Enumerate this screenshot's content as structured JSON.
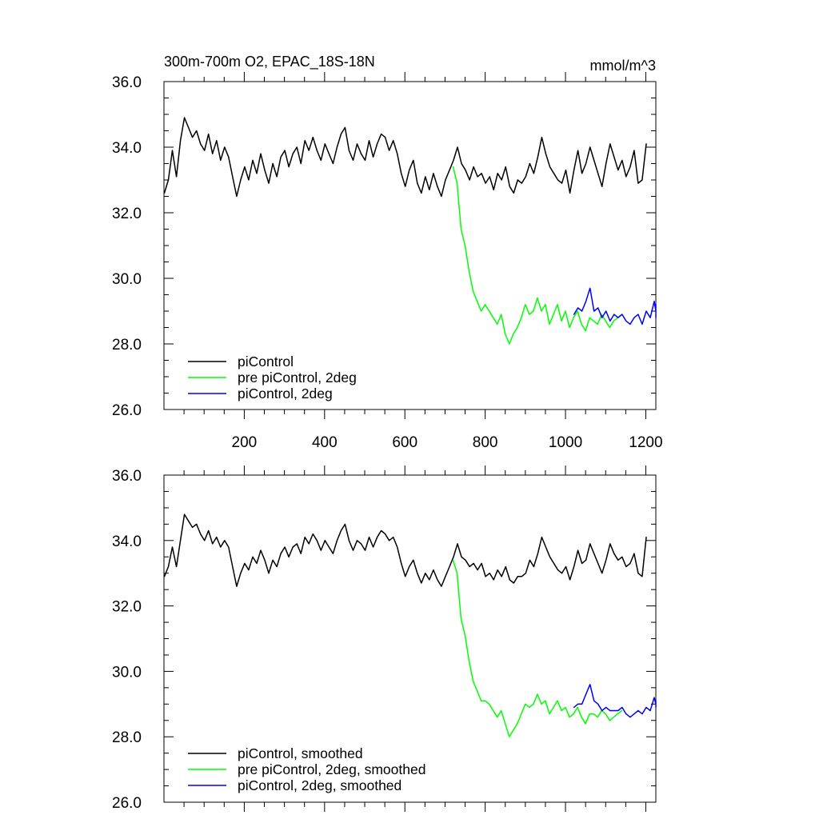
{
  "chart_data": [
    {
      "type": "line",
      "title": "300m-700m O2, EPAC_18S-18N",
      "units": "mmol/m^3",
      "xlim": [
        0,
        1225
      ],
      "ylim": [
        26,
        36
      ],
      "xticks": [
        200,
        400,
        600,
        800,
        1000,
        1200
      ],
      "xtick_labels": [
        "200",
        "400",
        "600",
        "800",
        "1000",
        "1200"
      ],
      "yticks": [
        26,
        28,
        30,
        32,
        34,
        36
      ],
      "ytick_labels": [
        "26.0",
        "28.0",
        "30.0",
        "32.0",
        "34.0",
        "36.0"
      ],
      "legend_position": "bottom-left",
      "series": [
        {
          "name": "piControl",
          "color": "#000000",
          "x_start": 1,
          "x_step": 10,
          "values": [
            32.6,
            33.0,
            33.9,
            33.1,
            34.2,
            34.9,
            34.6,
            34.3,
            34.5,
            34.1,
            33.9,
            34.4,
            33.8,
            34.2,
            33.6,
            34.0,
            33.7,
            33.1,
            32.5,
            33.0,
            33.4,
            33.0,
            33.6,
            33.2,
            33.8,
            33.3,
            32.9,
            33.5,
            33.1,
            33.7,
            33.9,
            33.4,
            33.8,
            34.0,
            33.5,
            34.2,
            33.9,
            34.3,
            33.9,
            33.6,
            34.1,
            33.8,
            33.5,
            34.0,
            34.4,
            34.6,
            33.9,
            33.6,
            34.1,
            33.8,
            33.6,
            34.2,
            33.7,
            34.1,
            34.4,
            34.3,
            33.9,
            34.2,
            33.8,
            33.2,
            32.8,
            33.3,
            33.6,
            32.9,
            32.6,
            33.1,
            32.7,
            33.2,
            32.8,
            32.5,
            33.0,
            33.3,
            33.6,
            34.0,
            33.5,
            33.3,
            33.0,
            33.4,
            33.1,
            33.2,
            32.9,
            33.1,
            32.7,
            33.2,
            33.0,
            33.4,
            32.8,
            32.6,
            33.0,
            32.9,
            33.1,
            33.5,
            33.2,
            33.7,
            34.3,
            33.8,
            33.4,
            33.2,
            33.0,
            32.9,
            33.3,
            32.6,
            33.3,
            33.9,
            33.2,
            33.5,
            34.0,
            33.6,
            33.2,
            32.8,
            33.5,
            34.1,
            33.7,
            33.3,
            33.6,
            33.1,
            33.4,
            33.9,
            32.9,
            33.0,
            34.1
          ]
        },
        {
          "name": "pre piControl, 2deg",
          "color": "#00ff00",
          "x_start": 720,
          "x_step": 10,
          "values": [
            33.4,
            32.9,
            31.5,
            31.0,
            30.2,
            29.6,
            29.3,
            29.0,
            29.2,
            29.0,
            28.8,
            28.6,
            28.9,
            28.3,
            28.0,
            28.3,
            28.5,
            28.8,
            29.2,
            28.9,
            29.0,
            29.4,
            29.0,
            29.2,
            28.6,
            28.9,
            29.2,
            28.7,
            29.0,
            28.5,
            28.8,
            29.0,
            28.6,
            28.4,
            28.8,
            28.7,
            28.6,
            28.9,
            28.7,
            28.5,
            28.7,
            28.8,
            28.9
          ]
        },
        {
          "name": "piControl, 2deg",
          "color": "#0000ff",
          "x_start": 1021,
          "x_step": 10,
          "values": [
            28.9,
            29.1,
            29.0,
            29.3,
            29.7,
            29.0,
            29.1,
            28.8,
            29.0,
            28.7,
            28.9,
            28.8,
            28.9,
            28.7,
            28.6,
            28.8,
            28.9,
            28.6,
            29.0,
            28.8,
            29.3,
            29.0,
            28.8,
            29.2
          ]
        }
      ]
    },
    {
      "type": "line",
      "xlim": [
        0,
        1225
      ],
      "ylim": [
        26,
        36
      ],
      "xticks": [
        200,
        400,
        600,
        800,
        1000,
        1200
      ],
      "yticks": [
        26,
        28,
        30,
        32,
        34,
        36
      ],
      "ytick_labels": [
        "26.0",
        "28.0",
        "30.0",
        "32.0",
        "34.0",
        "36.0"
      ],
      "legend_position": "bottom-left",
      "series": [
        {
          "name": "piControl, smoothed",
          "color": "#000000",
          "x_start": 1,
          "x_step": 10,
          "values": [
            32.9,
            33.2,
            33.8,
            33.2,
            34.0,
            34.8,
            34.6,
            34.4,
            34.5,
            34.2,
            34.0,
            34.3,
            33.9,
            34.1,
            33.8,
            34.0,
            33.8,
            33.2,
            32.6,
            33.0,
            33.3,
            33.1,
            33.5,
            33.3,
            33.7,
            33.4,
            33.0,
            33.4,
            33.2,
            33.6,
            33.8,
            33.5,
            33.8,
            33.9,
            33.6,
            34.1,
            33.9,
            34.2,
            34.0,
            33.7,
            34.0,
            33.8,
            33.6,
            34.0,
            34.3,
            34.5,
            34.0,
            33.7,
            34.0,
            33.9,
            33.7,
            34.1,
            33.8,
            34.1,
            34.3,
            34.2,
            34.0,
            34.1,
            33.8,
            33.3,
            32.9,
            33.2,
            33.4,
            33.0,
            32.7,
            33.0,
            32.8,
            33.1,
            32.8,
            32.6,
            32.9,
            33.2,
            33.5,
            33.9,
            33.5,
            33.4,
            33.2,
            33.3,
            33.1,
            33.3,
            32.9,
            33.0,
            32.8,
            33.1,
            32.9,
            33.2,
            32.8,
            32.7,
            32.9,
            32.9,
            33.0,
            33.4,
            33.2,
            33.6,
            34.1,
            33.8,
            33.5,
            33.3,
            33.1,
            33.0,
            33.2,
            32.8,
            33.2,
            33.7,
            33.3,
            33.4,
            33.9,
            33.6,
            33.3,
            33.0,
            33.4,
            33.9,
            33.6,
            33.4,
            33.5,
            33.2,
            33.3,
            33.6,
            33.0,
            32.9,
            34.1
          ]
        },
        {
          "name": "pre piControl, 2deg, smoothed",
          "color": "#00ff00",
          "x_start": 720,
          "x_step": 10,
          "values": [
            33.4,
            33.0,
            31.6,
            31.1,
            30.3,
            29.7,
            29.4,
            29.1,
            29.1,
            29.0,
            28.8,
            28.6,
            28.8,
            28.4,
            28.0,
            28.2,
            28.4,
            28.7,
            29.0,
            28.9,
            29.0,
            29.3,
            29.0,
            29.1,
            28.7,
            28.9,
            29.1,
            28.8,
            28.9,
            28.6,
            28.7,
            28.9,
            28.6,
            28.4,
            28.7,
            28.7,
            28.6,
            28.8,
            28.7,
            28.5,
            28.6,
            28.7,
            28.8
          ]
        },
        {
          "name": "piControl, 2deg, smoothed",
          "color": "#0000ff",
          "x_start": 1021,
          "x_step": 10,
          "values": [
            28.9,
            29.0,
            29.0,
            29.3,
            29.6,
            29.1,
            29.0,
            28.8,
            28.9,
            28.8,
            28.8,
            28.8,
            28.9,
            28.7,
            28.6,
            28.7,
            28.8,
            28.7,
            28.9,
            28.8,
            29.2,
            29.0,
            28.9,
            29.1
          ]
        }
      ]
    }
  ]
}
